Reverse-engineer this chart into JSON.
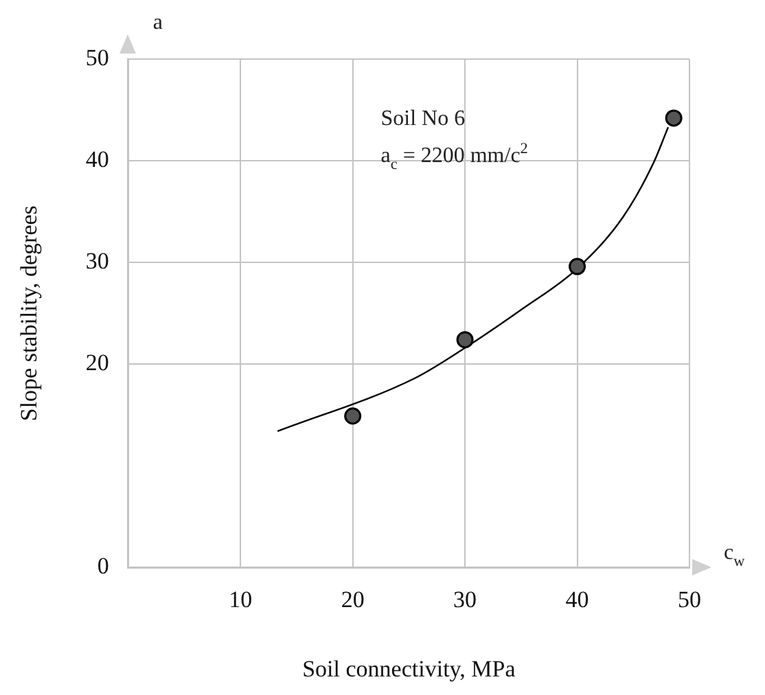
{
  "chart_data": {
    "type": "scatter",
    "xlabel": "Soil connectivity, MPa",
    "ylabel": "Slope stability, degrees",
    "annotations": [
      "Soil No 6",
      "a$_{c}$ = 2200 mm/c$^{2}$",
      "a",
      "c$_{w}$"
    ],
    "xlim": [
      0,
      50
    ],
    "xticks": [
      10,
      20,
      30,
      40,
      50
    ],
    "ylim": [
      0,
      50
    ],
    "yticks": [
      0,
      20,
      30,
      40,
      50
    ],
    "grid": true,
    "legend": false,
    "marker": "circle",
    "series": [
      {
        "type": "scatter",
        "color": "#555555",
        "x": [
          20,
          30,
          40,
          48.6
        ],
        "values": [
          14.9,
          22.4,
          29.6,
          44.2
        ]
      },
      {
        "type": "line",
        "color": "#000000",
        "marker": "none",
        "line_style": "solid",
        "x": [
          13.3,
          25.5,
          30,
          35.2,
          40,
          44.1,
          46.8,
          48.1
        ],
        "values": [
          13.4,
          18.6,
          21.6,
          25.5,
          29.4,
          34.5,
          39.8,
          43.3
        ]
      }
    ]
  }
}
